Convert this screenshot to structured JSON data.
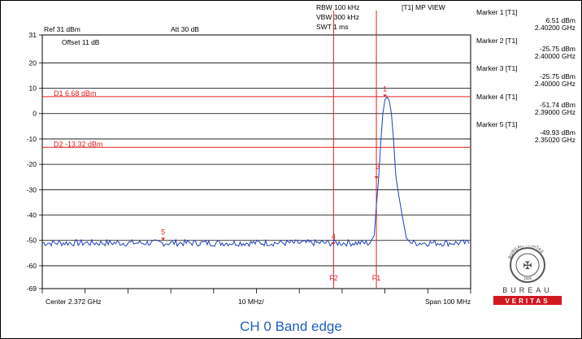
{
  "header": {
    "rbw": "RBW 100 kHz",
    "vbw": "VBW 300 kHz",
    "swt": "SWT 1 ms",
    "view": "[T1] MP VIEW",
    "ref": "Ref 31 dBm",
    "att": "Att  30 dB",
    "offset": "Offset 11 dB",
    "center": "Center 2.372 GHz",
    "div": "10 MHz/",
    "span": "Span 100 MHz"
  },
  "markers": [
    {
      "title": "Marker 1 [T1]",
      "level": "6.51 dBm",
      "freq": "2.40200 GHz"
    },
    {
      "title": "Marker 2 [T1]",
      "level": "-25.75 dBm",
      "freq": "2.40000 GHz"
    },
    {
      "title": "Marker 3 [T1]",
      "level": "-25.75 dBm",
      "freq": "2.40000 GHz"
    },
    {
      "title": "Marker 4 [T1]",
      "level": "-51.74 dBm",
      "freq": "2.39000 GHz"
    },
    {
      "title": "Marker 5 [T1]",
      "level": "-49.93 dBm",
      "freq": "2.35020 GHz"
    }
  ],
  "caption": "CH 0 Band edge",
  "logo": {
    "brand_top": "BUREAU",
    "brand_bottom": "VERITAS",
    "ring_text": "BUREAU VERITAS",
    "year": "1828"
  },
  "colors": {
    "trace": "#1f3fbf",
    "lines": "#e02020",
    "grid": "#000000",
    "caption": "#1f5fbf"
  },
  "chart_data": {
    "type": "line",
    "x_unit": "GHz",
    "y_unit": "dBm",
    "xlim": [
      2.322,
      2.422
    ],
    "ylim": [
      -69,
      31
    ],
    "y_ticks": [
      31,
      20,
      10,
      0,
      -10,
      -20,
      -30,
      -40,
      -50,
      -60,
      -69
    ],
    "x_tick_labels": {
      "center": "Center 2.372 GHz",
      "division": "10 MHz/",
      "span": "Span 100 MHz"
    },
    "grid": true,
    "display_lines": [
      {
        "name": "D1",
        "label": "D1 6.68 dBm",
        "value": 6.68
      },
      {
        "name": "D2",
        "label": "D2 -13.32 dBm",
        "value": -13.32
      }
    ],
    "freq_lines": [
      {
        "name": "F2",
        "label": "F2",
        "value": 2.39
      },
      {
        "name": "F1",
        "label": "F1",
        "value": 2.4
      }
    ],
    "markers": [
      {
        "label": "1",
        "x": 2.402,
        "y": 6.51
      },
      {
        "label": "2",
        "x": 2.4,
        "y": -25.75
      },
      {
        "label": "3",
        "x": 2.4,
        "y": -25.75
      },
      {
        "label": "4",
        "x": 2.39,
        "y": -51.74
      },
      {
        "label": "5",
        "x": 2.3502,
        "y": -49.93
      }
    ],
    "series": [
      {
        "noise_floor": -51,
        "x": [
          2.322,
          2.3985,
          2.3995,
          2.4,
          2.4005,
          2.401,
          2.4015,
          2.402,
          2.4025,
          2.403,
          2.4035,
          2.404,
          2.4045,
          2.405,
          2.406,
          2.407,
          2.408,
          2.422
        ],
        "y": [
          -51,
          -51,
          -48,
          -36,
          -26,
          -12,
          0,
          5.5,
          6.5,
          5,
          0,
          -10,
          -24,
          -30,
          -40,
          -49,
          -51,
          -51
        ]
      }
    ]
  }
}
